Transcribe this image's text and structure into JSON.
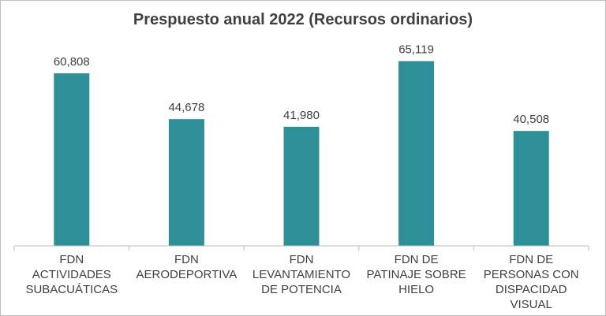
{
  "chart_data": {
    "type": "bar",
    "title": "Prespuesto anual 2022 (Recursos ordinarios)",
    "categories": [
      [
        "FDN",
        "ACTIVIDADES",
        "SUBACUÁTICAS"
      ],
      [
        "FDN",
        "AERODEPORTIVA"
      ],
      [
        "FDN",
        "LEVANTAMIENTO",
        "DE POTENCIA"
      ],
      [
        "FDN DE",
        "PATINAJE SOBRE",
        "HIELO"
      ],
      [
        "FDN DE",
        "PERSONAS CON",
        "DISPACIDAD",
        "VISUAL"
      ]
    ],
    "values": [
      60808,
      44678,
      41980,
      65119,
      40508
    ],
    "value_labels": [
      "60,808",
      "44,678",
      "41,980",
      "65,119",
      "40,508"
    ],
    "ylim": [
      0,
      70000
    ],
    "bar_color": "#2e8f97",
    "grid": false,
    "legend": "none"
  }
}
